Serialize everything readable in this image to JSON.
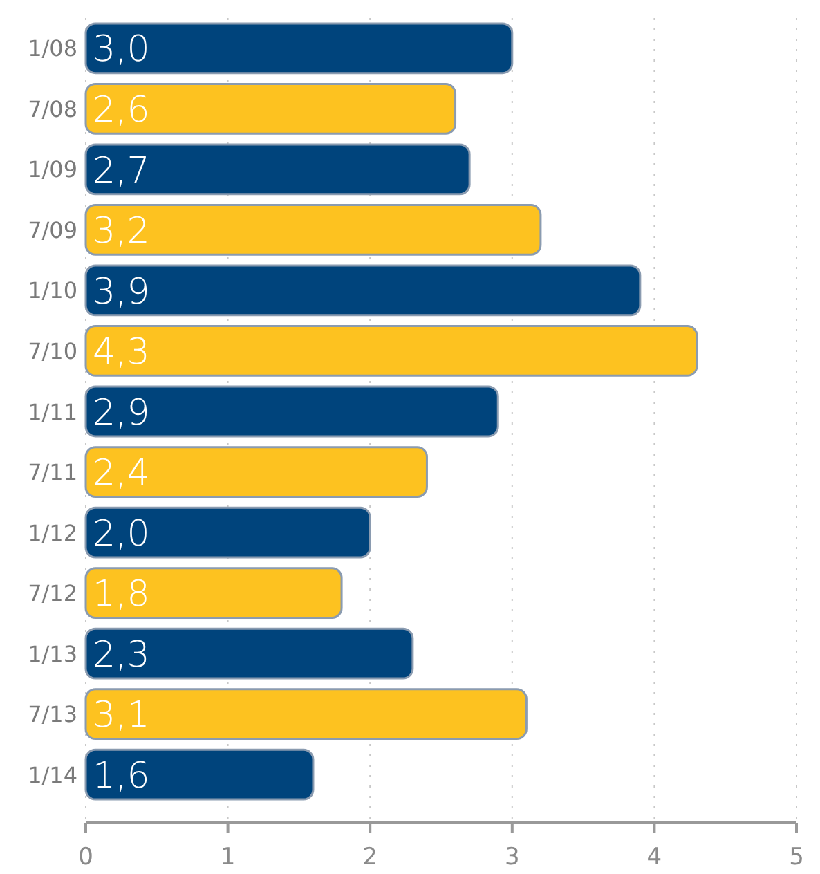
{
  "chart_data": {
    "type": "bar",
    "orientation": "horizontal",
    "categories": [
      "1/08",
      "7/08",
      "1/09",
      "7/09",
      "1/10",
      "7/10",
      "1/11",
      "7/11",
      "1/12",
      "7/12",
      "1/13",
      "7/13",
      "1/14"
    ],
    "values": [
      3.0,
      2.6,
      2.7,
      3.2,
      3.9,
      4.3,
      2.9,
      2.4,
      2.0,
      1.8,
      2.3,
      3.1,
      1.6
    ],
    "value_labels": [
      "3,0",
      "2,6",
      "2,7",
      "3,2",
      "3,9",
      "4,3",
      "2,9",
      "2,4",
      "2,0",
      "1,8",
      "2,3",
      "3,1",
      "1,6"
    ],
    "colors": [
      "#00447c",
      "#fdc220",
      "#00447c",
      "#fdc220",
      "#00447c",
      "#fdc220",
      "#00447c",
      "#fdc220",
      "#00447c",
      "#fdc220",
      "#00447c",
      "#fdc220",
      "#00447c"
    ],
    "xlim": [
      0,
      5
    ],
    "xticks": [
      0,
      1,
      2,
      3,
      4,
      5
    ],
    "grid": "x"
  }
}
